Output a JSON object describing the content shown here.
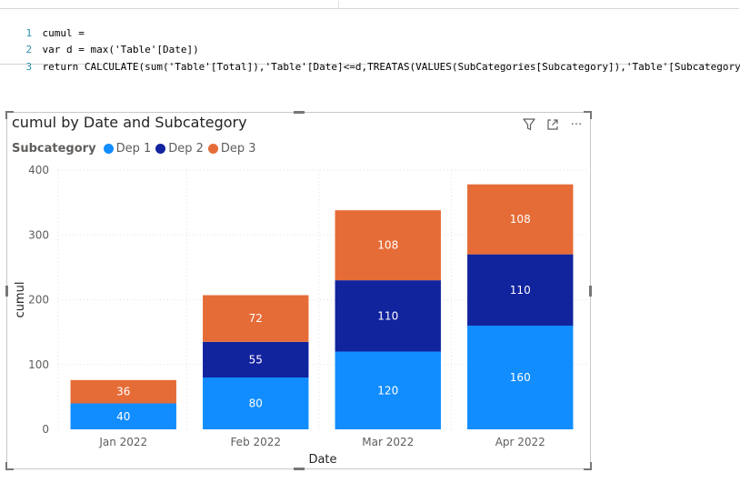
{
  "formula": {
    "lines": [
      {
        "no": "1",
        "text": "cumul ="
      },
      {
        "no": "2",
        "text": "var d = max('Table'[Date])"
      },
      {
        "no": "3",
        "text": "return CALCULATE(sum('Table'[Total]),'Table'[Date]<=d,TREATAS(VALUES(SubCategories[Subcategory]),'Table'[Subcategory]))"
      }
    ]
  },
  "visual": {
    "title": "cumul by Date and Subcategory",
    "icons": [
      "filter-icon",
      "focus-mode-icon",
      "more-options-icon"
    ],
    "more_glyph": "···"
  },
  "colors": {
    "Dep 1": "#118dff",
    "Dep 2": "#12239e",
    "Dep 3": "#e66c37"
  },
  "chart_data": {
    "type": "bar",
    "stacked": true,
    "title": "cumul by Date and Subcategory",
    "xlabel": "Date",
    "ylabel": "cumul",
    "legend_title": "Subcategory",
    "legend_position": "top-left",
    "categories": [
      "Jan 2022",
      "Feb 2022",
      "Mar 2022",
      "Apr 2022"
    ],
    "series": [
      {
        "name": "Dep 1",
        "values": [
          40,
          80,
          120,
          160
        ]
      },
      {
        "name": "Dep 2",
        "values": [
          null,
          55,
          110,
          110
        ]
      },
      {
        "name": "Dep 3",
        "values": [
          36,
          72,
          108,
          108
        ]
      }
    ],
    "ylim": [
      0,
      400
    ],
    "yticks": [
      0,
      100,
      200,
      300,
      400
    ],
    "grid": true
  }
}
